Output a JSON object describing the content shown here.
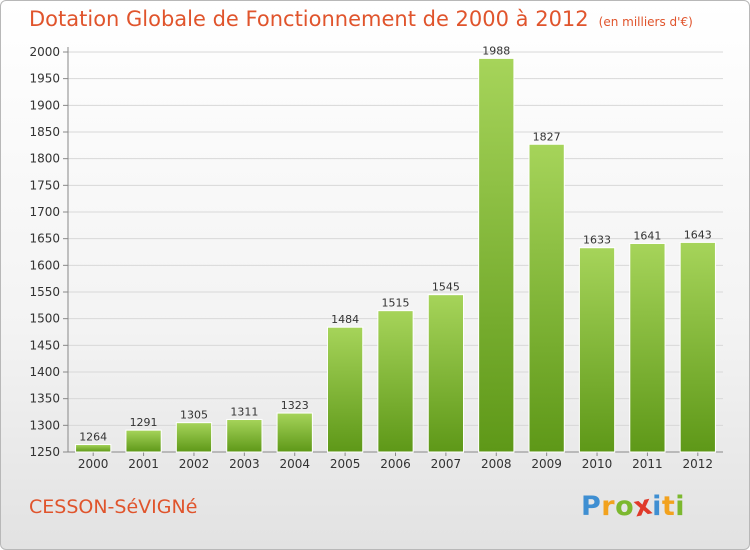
{
  "title": "Dotation Globale de Fonctionnement de 2000 à 2012",
  "subtitle": "(en milliers d'€)",
  "commune": "CESSON-SéVIGNé",
  "logo": {
    "letters": [
      "P",
      "r",
      "o",
      "x",
      "i",
      "t",
      "i"
    ],
    "colors": [
      "#3f8fd2",
      "#f2a21e",
      "#7cb82f",
      "#e03a2a",
      "#3f8fd2",
      "#f2a21e",
      "#7cb82f"
    ]
  },
  "colors": {
    "title": "#e0542c",
    "bar_light": "#a6d45a",
    "bar_dark": "#5e9818",
    "grid": "#d8d8d8"
  },
  "chart_data": {
    "type": "bar",
    "title": "Dotation Globale de Fonctionnement de 2000 à 2012",
    "subtitle": "(en milliers d'€)",
    "xlabel": "",
    "ylabel": "",
    "categories": [
      "2000",
      "2001",
      "2002",
      "2003",
      "2004",
      "2005",
      "2006",
      "2007",
      "2008",
      "2009",
      "2010",
      "2011",
      "2012"
    ],
    "values": [
      1264,
      1291,
      1305,
      1311,
      1323,
      1484,
      1515,
      1545,
      1988,
      1827,
      1633,
      1641,
      1643
    ],
    "ylim": [
      1250,
      2000
    ],
    "yticks": [
      1250,
      1300,
      1350,
      1400,
      1450,
      1500,
      1550,
      1600,
      1650,
      1700,
      1750,
      1800,
      1850,
      1900,
      1950,
      2000
    ],
    "grid": true,
    "data_labels": true
  }
}
